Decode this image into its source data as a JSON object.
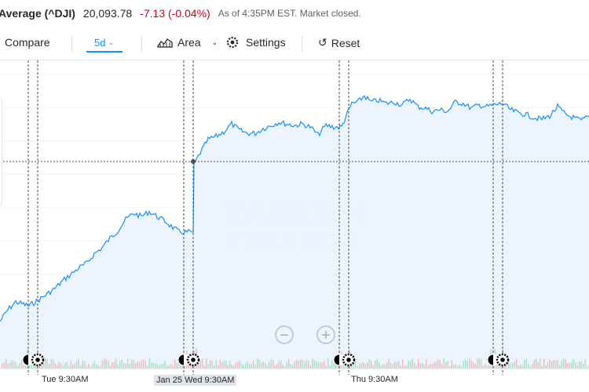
{
  "quote": {
    "name": "Average (^DJI)",
    "price": "20,093.78",
    "change": "-7.13 (-0.04%)",
    "as_of": "As of 4:35PM EST. Market closed."
  },
  "toolbar": {
    "compare": "Compare",
    "range": "5d",
    "chart_type": "Area",
    "settings": "Settings",
    "reset": "Reset"
  },
  "chart": {
    "watermark_top": "YAHOO!",
    "watermark_bottom": "FINANCE",
    "day_labels": [
      "Tue 9:30AM",
      "Jan 25 Wed 9:30AM",
      "Thu 9:30AM"
    ],
    "line_color": "#188fff",
    "area_color": "#eaf4ff",
    "zoom_out": "−",
    "zoom_in": "+"
  }
}
